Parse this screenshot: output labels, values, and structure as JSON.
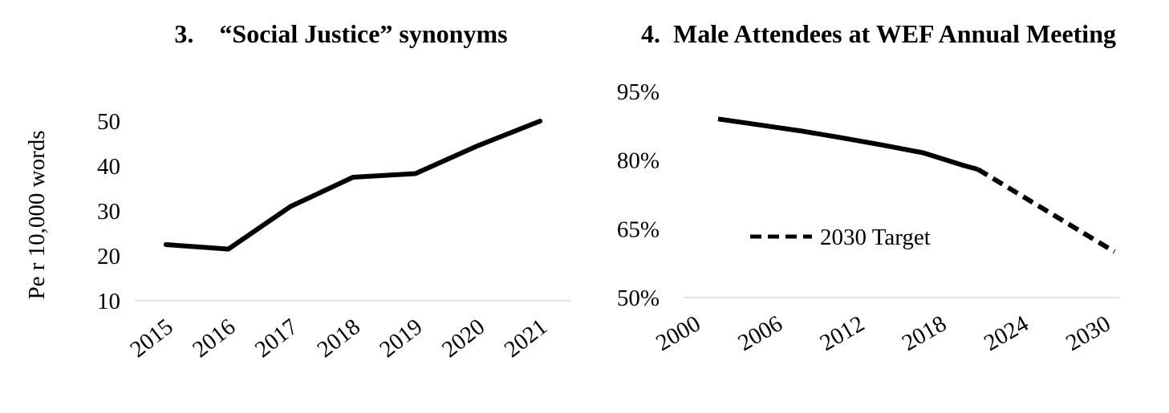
{
  "chart_data": [
    {
      "type": "line",
      "title": "3.    “Social Justice” synonyms",
      "xlabel": "",
      "ylabel": "Pe r 10,000 words",
      "categories": [
        "2015",
        "2016",
        "2017",
        "2018",
        "2019",
        "2020",
        "2021"
      ],
      "values": [
        22.5,
        21.5,
        31,
        37.5,
        38.3,
        44.5,
        50
      ],
      "ylim": [
        10,
        50
      ],
      "yticks": [
        "10",
        "20",
        "30",
        "40",
        "50"
      ],
      "line_color": "#000000",
      "grid": false,
      "legend": "none"
    },
    {
      "type": "line",
      "title": "4.  Male Attendees at WEF Annual Meeting",
      "xlabel": "",
      "ylabel": "",
      "xlim": [
        1998,
        2031
      ],
      "ylim": [
        50,
        95
      ],
      "xticks": [
        "2000",
        "2006",
        "2012",
        "2018",
        "2024",
        "2030"
      ],
      "yticks": [
        "50%",
        "65%",
        "80%",
        "95%"
      ],
      "series": [
        {
          "style": "solid",
          "points": [
            [
              2001,
              89
            ],
            [
              2004,
              87.7
            ],
            [
              2007,
              86.4
            ],
            [
              2010,
              84.9
            ],
            [
              2013,
              83.3
            ],
            [
              2016,
              81.6
            ],
            [
              2019,
              78.8
            ],
            [
              2020,
              78
            ]
          ]
        },
        {
          "name": "2030 Target",
          "style": "dashed",
          "points": [
            [
              2020,
              78
            ],
            [
              2030,
              60
            ]
          ]
        }
      ],
      "line_color": "#000000",
      "grid": false,
      "legend": "center"
    }
  ]
}
